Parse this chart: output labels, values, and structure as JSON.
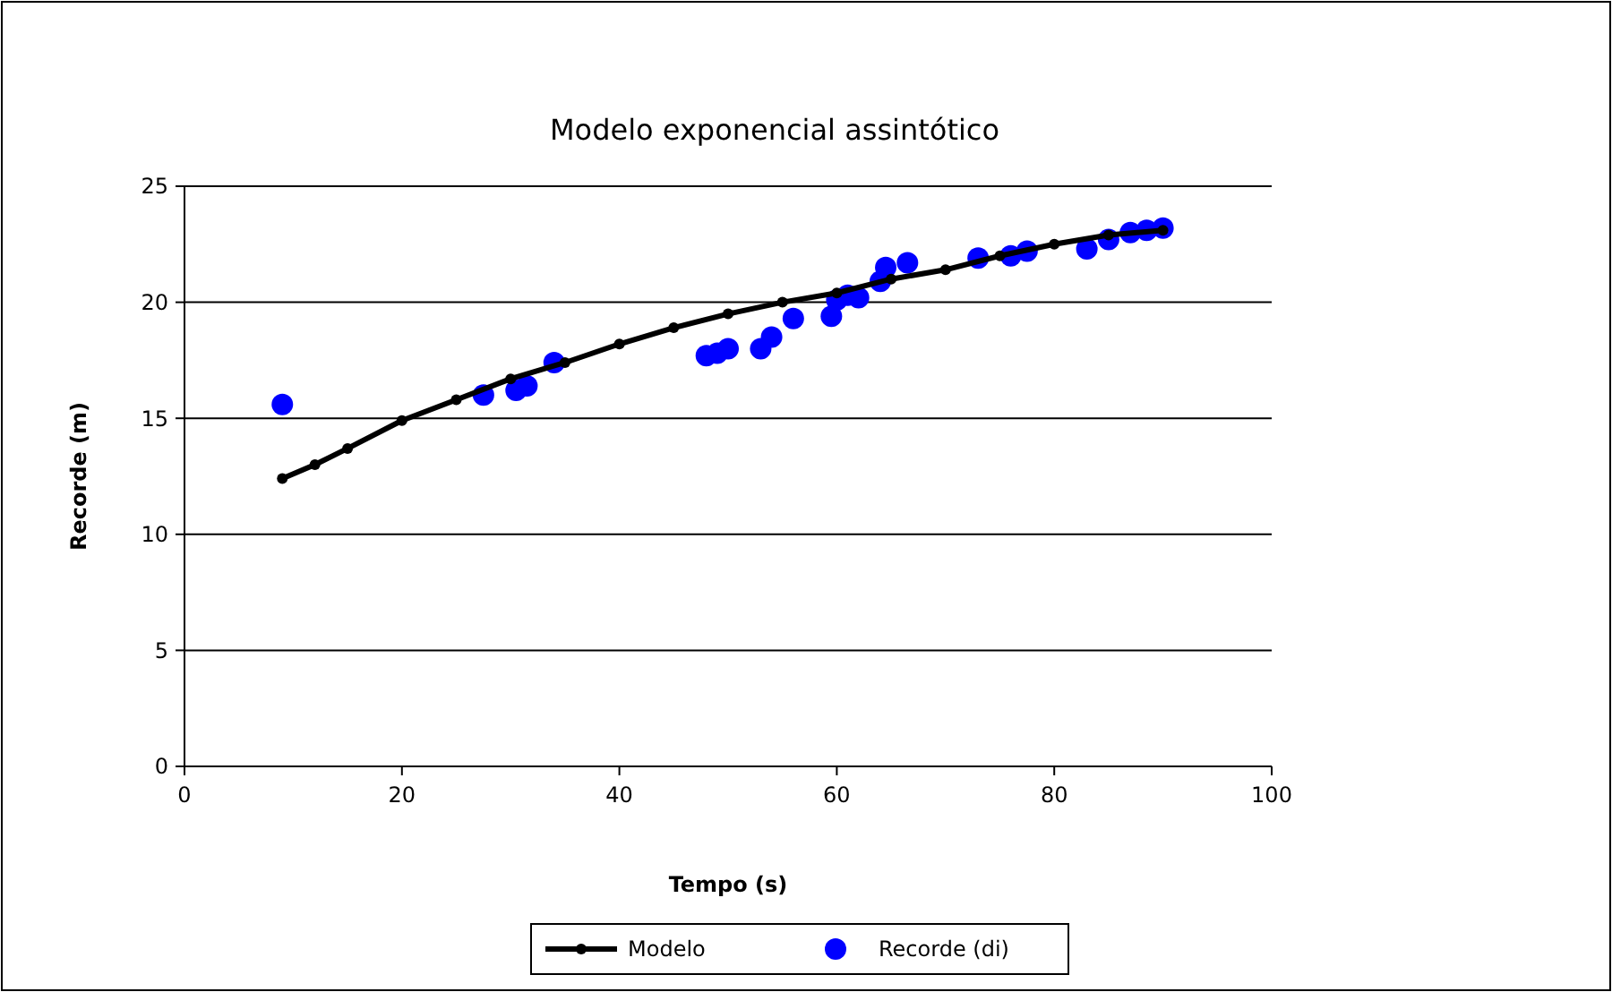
{
  "chart_data": {
    "type": "line",
    "title": "Modelo exponencial assintótico",
    "xlabel": "Tempo (s)",
    "ylabel": "Recorde (m)",
    "xlim": [
      0,
      100
    ],
    "xticks": [
      0,
      20,
      40,
      60,
      80,
      100
    ],
    "ylim": [
      0,
      25
    ],
    "yticks": [
      0,
      5,
      10,
      15,
      20,
      25
    ],
    "grid": "y",
    "legend": "bottom",
    "line_style": "solid",
    "series": [
      {
        "name": "Modelo",
        "marker": "circle",
        "color": "#000000",
        "x": [
          9,
          12,
          15,
          20,
          25,
          30,
          35,
          40,
          45,
          50,
          55,
          60,
          65,
          70,
          75,
          80,
          85,
          90
        ],
        "values": [
          12.4,
          13.0,
          13.7,
          14.9,
          15.8,
          16.7,
          17.4,
          18.2,
          18.9,
          19.5,
          20.0,
          20.4,
          21.0,
          21.4,
          22.0,
          22.5,
          22.9,
          23.1
        ]
      },
      {
        "name": "Recorde (di)",
        "type": "scatter",
        "marker": "circle",
        "color": "#0000ff",
        "x": [
          9,
          27.5,
          30.5,
          31.5,
          34,
          48,
          49,
          50,
          53,
          54,
          56,
          59.5,
          60,
          61,
          62,
          64,
          64.5,
          66.5,
          73,
          76,
          77.5,
          83,
          85,
          87,
          88.5,
          90
        ],
        "values": [
          15.6,
          16.0,
          16.2,
          16.4,
          17.4,
          17.7,
          17.8,
          18.0,
          18.0,
          18.5,
          19.3,
          19.4,
          20.1,
          20.3,
          20.2,
          20.9,
          21.5,
          21.7,
          21.9,
          22.0,
          22.2,
          22.3,
          22.7,
          23.0,
          23.1,
          23.2
        ]
      }
    ]
  }
}
